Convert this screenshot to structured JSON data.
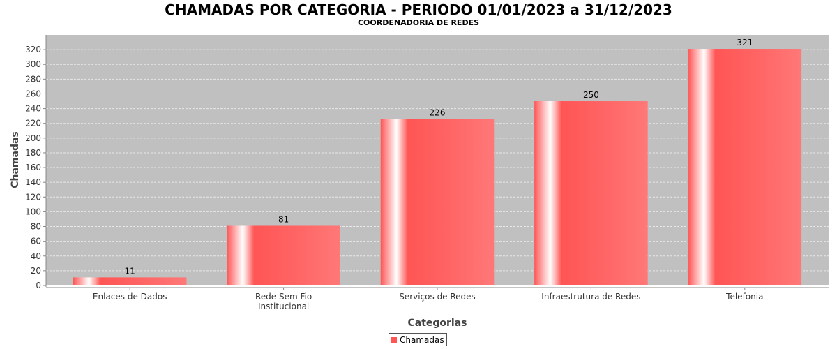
{
  "title": "CHAMADAS POR CATEGORIA - PERIODO 01/01/2023 a 31/12/2023",
  "subtitle": "COORDENADORIA DE REDES",
  "colors": {
    "plot_background": "#c0c0c0",
    "bar": "#ff5555",
    "grid": "#e8e8e8"
  },
  "chart_data": {
    "type": "bar",
    "title": "CHAMADAS POR CATEGORIA - PERIODO 01/01/2023 a 31/12/2023",
    "subtitle": "COORDENADORIA DE REDES",
    "xlabel": "Categorias",
    "ylabel": "Chamadas",
    "categories": [
      [
        "Enlaces de Dados"
      ],
      [
        "Rede Sem Fio",
        "Institucional"
      ],
      [
        "Serviços de Redes"
      ],
      [
        "Infraestrutura de Redes"
      ],
      [
        "Telefonia"
      ]
    ],
    "series": [
      {
        "name": "Chamadas",
        "values": [
          11,
          81,
          226,
          250,
          321
        ]
      }
    ],
    "ylim": [
      0,
      340
    ],
    "yticks": [
      0,
      20,
      40,
      60,
      80,
      100,
      120,
      140,
      160,
      180,
      200,
      220,
      240,
      260,
      280,
      300,
      320
    ],
    "grid": true,
    "data_labels": true,
    "legend_position": "bottom"
  }
}
